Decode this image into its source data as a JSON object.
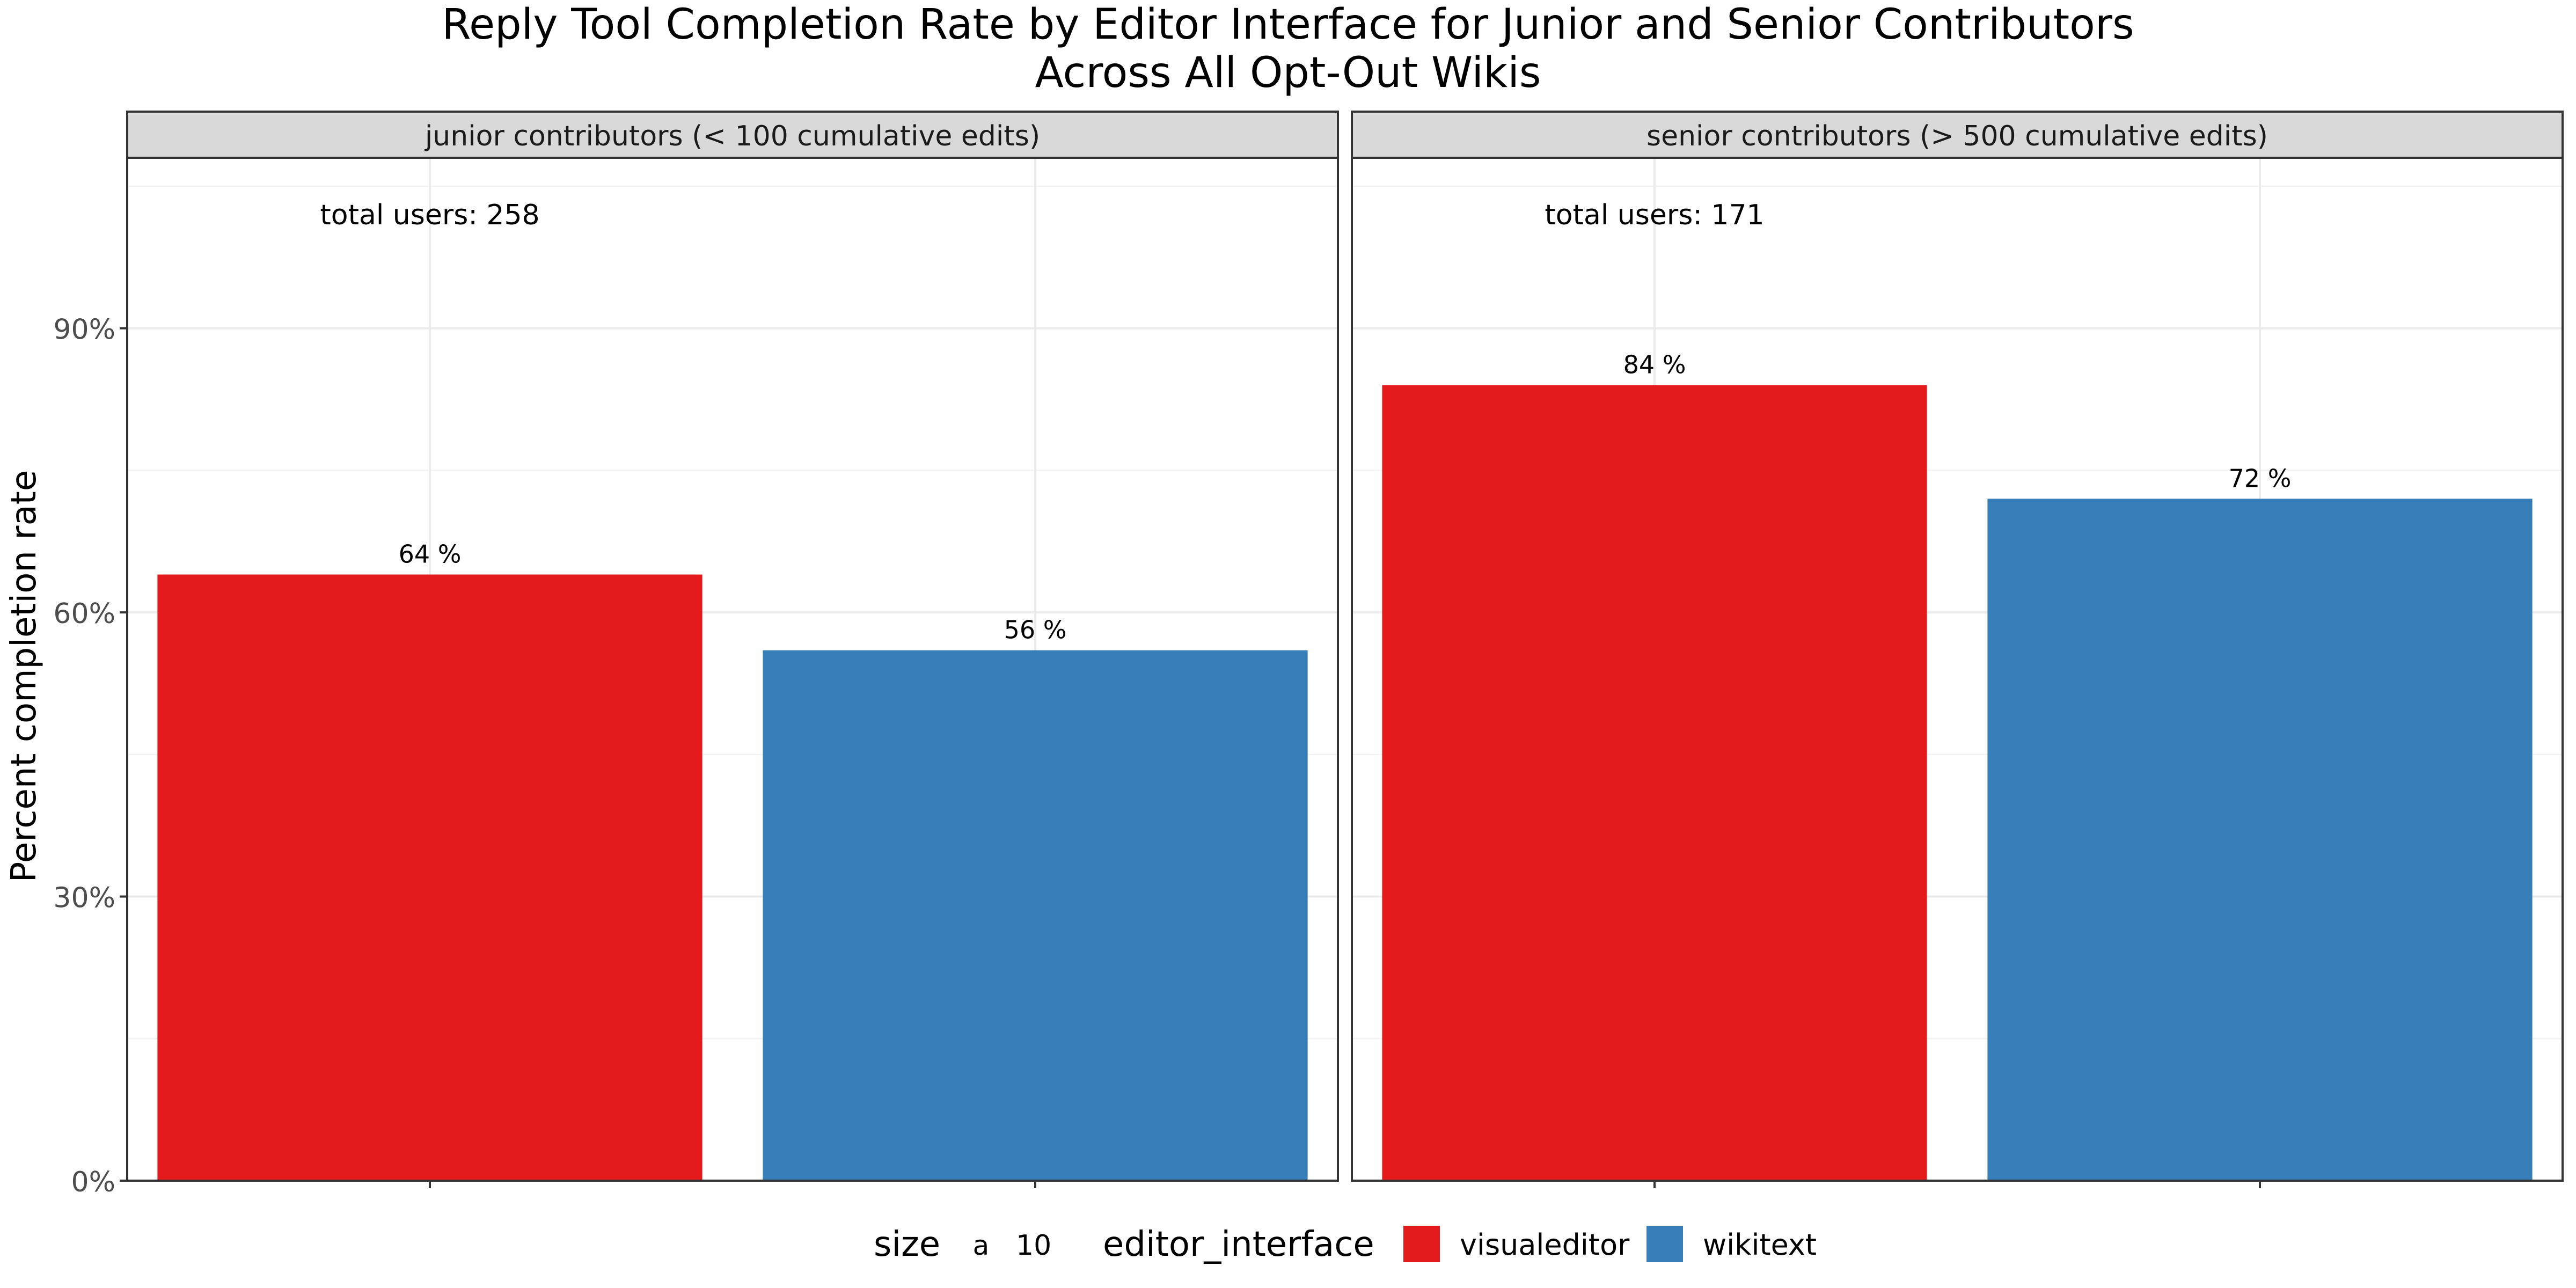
{
  "chart_data": {
    "type": "bar",
    "title": "Reply Tool Completion Rate by Editor Interface for Junior and Senior Contributors",
    "subtitle": "Across All Opt-Out Wikis",
    "ylabel": "Percent completion rate",
    "xlabel": "",
    "ylim": [
      0,
      1.08
    ],
    "yticks": [
      0,
      0.3,
      0.6,
      0.9
    ],
    "ytick_labels": [
      "0%",
      "30%",
      "60%",
      "90%"
    ],
    "categories": [
      "visualeditor",
      "wikitext"
    ],
    "colors": {
      "visualeditor": "#E41A1C",
      "wikitext": "#377EB8"
    },
    "grid": true,
    "legend_position": "bottom",
    "legend": {
      "size_title": "size",
      "size_key_glyph": "a",
      "size_key_label": "10",
      "fill_title": "editor_interface",
      "items": [
        {
          "label": "visualeditor",
          "color": "#E41A1C"
        },
        {
          "label": "wikitext",
          "color": "#377EB8"
        }
      ]
    },
    "panels": [
      {
        "strip": "junior contributors (< 100 cumulative edits)",
        "annotation": "total users: 258",
        "values": [
          0.64,
          0.56
        ],
        "labels": [
          "64 %",
          "56 %"
        ]
      },
      {
        "strip": "senior contributors (> 500 cumulative edits)",
        "annotation": "total users: 171",
        "values": [
          0.84,
          0.72
        ],
        "labels": [
          "84 %",
          "72 %"
        ]
      }
    ]
  }
}
